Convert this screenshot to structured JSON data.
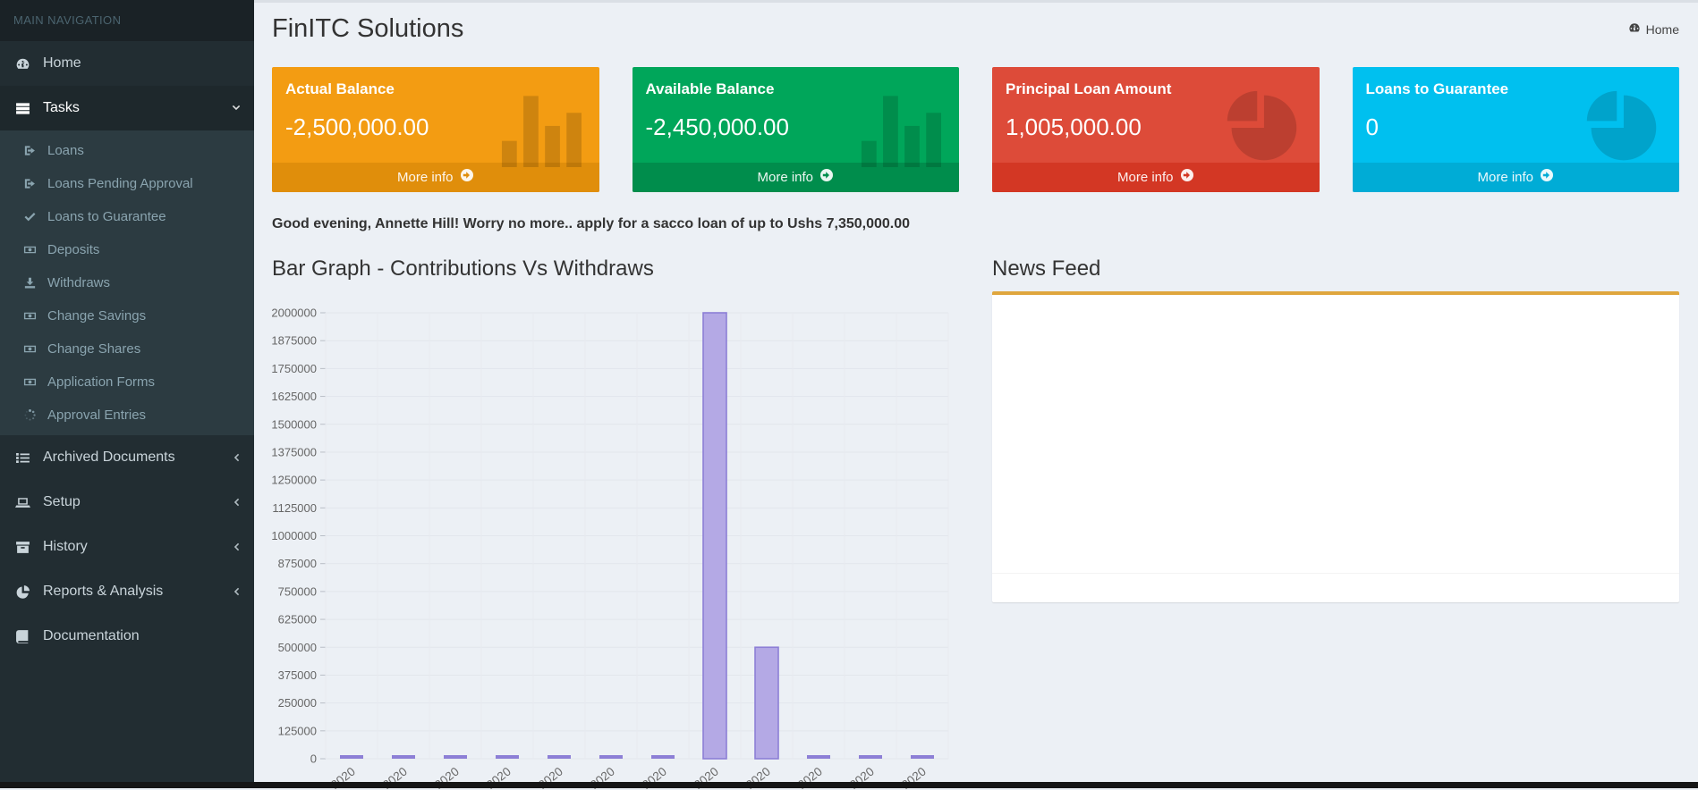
{
  "page": {
    "title": "FinITC Solutions",
    "breadcrumb_home": "Home"
  },
  "sidebar": {
    "header": "MAIN NAVIGATION",
    "items": [
      {
        "label": "Home",
        "icon": "dashboard-icon",
        "type": "item"
      },
      {
        "label": "Tasks",
        "icon": "tasks-icon",
        "type": "parent",
        "active": true,
        "chevron": "down",
        "children": [
          {
            "label": "Loans",
            "icon": "sign-out-icon"
          },
          {
            "label": "Loans Pending Approval",
            "icon": "sign-out-icon"
          },
          {
            "label": "Loans to Guarantee",
            "icon": "check-icon"
          },
          {
            "label": "Deposits",
            "icon": "money-icon"
          },
          {
            "label": "Withdraws",
            "icon": "download-icon"
          },
          {
            "label": "Change Savings",
            "icon": "money-icon"
          },
          {
            "label": "Change Shares",
            "icon": "money-icon"
          },
          {
            "label": "Application Forms",
            "icon": "money-icon"
          },
          {
            "label": "Approval Entries",
            "icon": "spinner-icon"
          }
        ]
      },
      {
        "label": "Archived Documents",
        "icon": "list-icon",
        "type": "item",
        "chevron": "left"
      },
      {
        "label": "Setup",
        "icon": "laptop-icon",
        "type": "item",
        "chevron": "left"
      },
      {
        "label": "History",
        "icon": "archive-icon",
        "type": "item",
        "chevron": "left"
      },
      {
        "label": "Reports & Analysis",
        "icon": "pie-chart-icon",
        "type": "item",
        "chevron": "left"
      },
      {
        "label": "Documentation",
        "icon": "book-icon",
        "type": "item"
      }
    ]
  },
  "info_boxes": [
    {
      "label": "Actual Balance",
      "value": "-2,500,000.00",
      "color": "#f39c12",
      "footer_color": "#e08e0b",
      "icon": "bar-chart-icon",
      "more_label": "More info"
    },
    {
      "label": "Available Balance",
      "value": "-2,450,000.00",
      "color": "#00a65a",
      "footer_color": "#008d4c",
      "icon": "bar-chart-icon",
      "more_label": "More info"
    },
    {
      "label": "Principal Loan Amount",
      "value": "1,005,000.00",
      "color": "#dd4b39",
      "footer_color": "#d33724",
      "icon": "pie-chart-icon",
      "more_label": "More info"
    },
    {
      "label": "Loans to Guarantee",
      "value": "0",
      "color": "#00c0ef",
      "footer_color": "#00acd6",
      "icon": "pie-chart-icon",
      "more_label": "More info"
    }
  ],
  "greeting": "Good evening, Annette Hill! Worry no more.. apply for a sacco loan of up to Ushs 7,350,000.00",
  "sections": {
    "chart_title": "Bar Graph - Contributions Vs Withdraws",
    "news_title": "News Feed"
  },
  "news_feed": {
    "items": []
  },
  "chart_data": {
    "type": "bar",
    "title": "Bar Graph - Contributions Vs Withdraws",
    "categories": [
      "2020",
      "2020",
      "2020",
      "2020",
      "2020",
      "2020",
      "2020",
      "2020",
      "2020",
      "2020",
      "2020",
      "2020"
    ],
    "series": [
      {
        "name": "Contributions Vs Withdraws",
        "values": [
          0,
          0,
          0,
          0,
          0,
          0,
          0,
          2000000,
          500000,
          0,
          0,
          0
        ]
      }
    ],
    "ylim": [
      0,
      2000000
    ],
    "ytick_step": 125000,
    "grid": true,
    "legend": "none",
    "bar_fill": "#b4a9e5",
    "bar_border": "#8d7fd6",
    "xlabel": "",
    "ylabel": ""
  },
  "colors": {
    "sidebar_bg": "#222d32",
    "sidebar_header_bg": "#1a2226",
    "submenu_bg": "#2c3b41",
    "content_bg": "#ecf0f5",
    "news_box_top_border": "#dfa63d"
  }
}
